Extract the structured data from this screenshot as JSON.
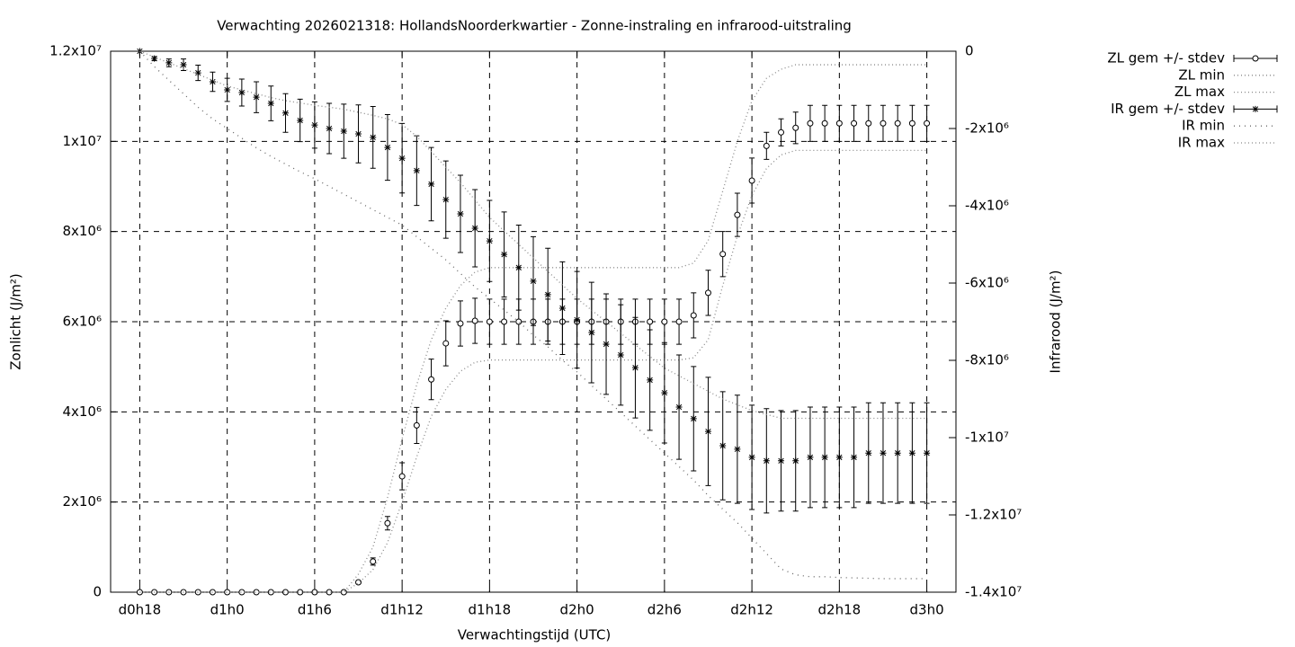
{
  "chart_data": {
    "type": "errorbar",
    "title": "Verwachting 2026021318: HollandsNoorderkwartier - Zonne-instraling en infrarood-uitstraling",
    "x_label": "Verwachtingstijd (UTC)",
    "y_label": "Zonlicht (J/m²)",
    "y2_label": "Infrarood (J/m²)",
    "grid": true,
    "legend": "outside-top-right",
    "xlim": [
      16,
      74
    ],
    "xticks": [
      {
        "value": 18,
        "label": "d0h18"
      },
      {
        "value": 24,
        "label": "d1h0"
      },
      {
        "value": 30,
        "label": "d1h6"
      },
      {
        "value": 36,
        "label": "d1h12"
      },
      {
        "value": 42,
        "label": "d1h18"
      },
      {
        "value": 48,
        "label": "d2h0"
      },
      {
        "value": 54,
        "label": "d2h6"
      },
      {
        "value": 60,
        "label": "d2h12"
      },
      {
        "value": 66,
        "label": "d2h18"
      },
      {
        "value": 72,
        "label": "d3h0"
      }
    ],
    "ylim": [
      0,
      12000000.0
    ],
    "yticks": [
      0,
      {
        "value": 2000000.0,
        "label": "2x10⁶"
      },
      {
        "value": 4000000.0,
        "label": "4x10⁶"
      },
      {
        "value": 6000000.0,
        "label": "6x10⁶"
      },
      {
        "value": 8000000.0,
        "label": "8x10⁶"
      },
      {
        "value": 10000000.0,
        "label": "1x10⁷"
      },
      {
        "value": 12000000.0,
        "label": "1.2x10⁷"
      }
    ],
    "y2lim": [
      -14000000.0,
      0
    ],
    "y2ticks": [
      {
        "value": -14000000.0,
        "label": "-1.4x10⁷"
      },
      {
        "value": -12000000.0,
        "label": "-1.2x10⁷"
      },
      {
        "value": -10000000.0,
        "label": "-1x10⁷"
      },
      {
        "value": -8000000.0,
        "label": "-8x10⁶"
      },
      {
        "value": -6000000.0,
        "label": "-6x10⁶"
      },
      {
        "value": -4000000.0,
        "label": "-4x10⁶"
      },
      {
        "value": -2000000.0,
        "label": "-2x10⁶"
      },
      0
    ],
    "x": [
      18,
      19,
      20,
      21,
      22,
      23,
      24,
      25,
      26,
      27,
      28,
      29,
      30,
      31,
      32,
      33,
      34,
      35,
      36,
      37,
      38,
      39,
      40,
      41,
      42,
      43,
      44,
      45,
      46,
      47,
      48,
      49,
      50,
      51,
      52,
      53,
      54,
      55,
      56,
      57,
      58,
      59,
      60,
      61,
      62,
      63,
      64,
      65,
      66,
      67,
      68,
      69,
      70,
      71,
      72
    ],
    "series": [
      {
        "name": "ZL gem +/- stdev",
        "color": "#000000",
        "style": "errorbars",
        "marker": "circle",
        "axis": "y",
        "values": [
          0,
          0,
          0,
          0,
          0,
          0,
          0,
          0,
          0,
          0,
          0,
          0,
          0,
          0,
          0,
          220000.0,
          680000.0,
          1530000.0,
          2570000.0,
          3700000.0,
          4720000.0,
          5520000.0,
          5960000.0,
          6020000.0,
          6000000.0,
          6000000.0,
          6000000.0,
          6000000.0,
          6000000.0,
          6000000.0,
          6000000.0,
          6000000.0,
          6000000.0,
          6000000.0,
          6000000.0,
          6000000.0,
          6000000.0,
          6000000.0,
          6140000.0,
          6640000.0,
          7500000.0,
          8370000.0,
          9130000.0,
          9900000.0,
          10200000.0,
          10300000.0,
          10400000.0,
          10400000.0,
          10400000.0,
          10400000.0,
          10400000.0,
          10400000.0,
          10400000.0,
          10400000.0,
          10400000.0
        ],
        "errors": [
          0,
          0,
          0,
          0,
          0,
          0,
          0,
          0,
          0,
          0,
          0,
          0,
          0,
          0,
          0,
          20000.0,
          80000.0,
          150000.0,
          300000.0,
          400000.0,
          450000.0,
          500000.0,
          500000.0,
          500000.0,
          500000.0,
          500000.0,
          500000.0,
          500000.0,
          500000.0,
          500000.0,
          500000.0,
          500000.0,
          500000.0,
          500000.0,
          500000.0,
          500000.0,
          500000.0,
          500000.0,
          500000.0,
          500000.0,
          500000.0,
          480000.0,
          500000.0,
          300000.0,
          300000.0,
          350000.0,
          400000.0,
          400000.0,
          400000.0,
          400000.0,
          400000.0,
          400000.0,
          400000.0,
          400000.0,
          400000.0
        ]
      },
      {
        "name": "ZL min",
        "color": "#888888",
        "style": "dotted",
        "axis": "y",
        "values": [
          0,
          0,
          0,
          0,
          0,
          0,
          0,
          0,
          0,
          0,
          0,
          0,
          0,
          0,
          0,
          200000.0,
          500000.0,
          1100000.0,
          2000000.0,
          3000000.0,
          3900000.0,
          4500000.0,
          4900000.0,
          5100000.0,
          5150000.0,
          5150000.0,
          5150000.0,
          5150000.0,
          5150000.0,
          5150000.0,
          5150000.0,
          5150000.0,
          5150000.0,
          5150000.0,
          5150000.0,
          5150000.0,
          5150000.0,
          5150000.0,
          5200000.0,
          5600000.0,
          6800000.0,
          7900000.0,
          8800000.0,
          9400000.0,
          9700000.0,
          9800000.0,
          9800000.0,
          9800000.0,
          9800000.0,
          9800000.0,
          9800000.0,
          9800000.0,
          9800000.0,
          9800000.0,
          9800000.0
        ]
      },
      {
        "name": "ZL max",
        "color": "#888888",
        "style": "dotted",
        "axis": "y",
        "values": [
          0,
          0,
          0,
          0,
          0,
          0,
          0,
          0,
          0,
          0,
          0,
          0,
          0,
          0,
          0,
          400000.0,
          1000000.0,
          2100000.0,
          3400000.0,
          4600000.0,
          5600000.0,
          6300000.0,
          6800000.0,
          7100000.0,
          7200000.0,
          7200000.0,
          7200000.0,
          7200000.0,
          7200000.0,
          7200000.0,
          7200000.0,
          7200000.0,
          7200000.0,
          7200000.0,
          7200000.0,
          7200000.0,
          7200000.0,
          7200000.0,
          7300000.0,
          7800000.0,
          8900000.0,
          10000000.0,
          10900000.0,
          11400000.0,
          11600000.0,
          11700000.0,
          11700000.0,
          11700000.0,
          11700000.0,
          11700000.0,
          11700000.0,
          11700000.0,
          11700000.0,
          11700000.0,
          11700000.0
        ]
      },
      {
        "name": "IR gem +/- stdev",
        "color": "#000000",
        "style": "errorbars",
        "marker": "star",
        "axis": "y2",
        "values": [
          0,
          -190000.0,
          -300000.0,
          -350000.0,
          -560000.0,
          -790000.0,
          -1000000.0,
          -1070000.0,
          -1190000.0,
          -1350000.0,
          -1600000.0,
          -1790000.0,
          -1910000.0,
          -2000000.0,
          -2070000.0,
          -2140000.0,
          -2230000.0,
          -2490000.0,
          -2770000.0,
          -3090000.0,
          -3440000.0,
          -3840000.0,
          -4210000.0,
          -4580000.0,
          -4910000.0,
          -5260000.0,
          -5600000.0,
          -5950000.0,
          -6300000.0,
          -6650000.0,
          -6950000.0,
          -7280000.0,
          -7580000.0,
          -7860000.0,
          -8190000.0,
          -8510000.0,
          -8840000.0,
          -9210000.0,
          -9510000.0,
          -9840000.0,
          -10210000.0,
          -10300000.0,
          -10510000.0,
          -10600000.0,
          -10600000.0,
          -10600000.0,
          -10510000.0,
          -10510000.0,
          -10510000.0,
          -10510000.0,
          -10400000.0,
          -10400000.0,
          -10400000.0,
          -10400000.0,
          -10400000.0
        ],
        "errors": [
          0,
          50000.0,
          100000.0,
          150000.0,
          200000.0,
          250000.0,
          300000.0,
          350000.0,
          400000.0,
          450000.0,
          500000.0,
          550000.0,
          600000.0,
          650000.0,
          700000.0,
          750000.0,
          800000.0,
          850000.0,
          900000.0,
          900000.0,
          950000.0,
          1000000.0,
          1000000.0,
          1000000.0,
          1050000.0,
          1100000.0,
          1100000.0,
          1150000.0,
          1200000.0,
          1200000.0,
          1250000.0,
          1300000.0,
          1300000.0,
          1300000.0,
          1300000.0,
          1300000.0,
          1300000.0,
          1350000.0,
          1350000.0,
          1400000.0,
          1400000.0,
          1400000.0,
          1350000.0,
          1350000.0,
          1300000.0,
          1300000.0,
          1300000.0,
          1300000.0,
          1300000.0,
          1300000.0,
          1300000.0,
          1300000.0,
          1300000.0,
          1300000.0,
          1300000.0
        ]
      },
      {
        "name": "IR min",
        "color": "#666666",
        "style": "dotted-wide",
        "axis": "y2",
        "values": [
          0,
          -400000.0,
          -750000.0,
          -1100000.0,
          -1450000.0,
          -1750000.0,
          -2000000.0,
          -2250000.0,
          -2500000.0,
          -2720000.0,
          -2920000.0,
          -3120000.0,
          -3300000.0,
          -3500000.0,
          -3700000.0,
          -3900000.0,
          -4100000.0,
          -4300000.0,
          -4500000.0,
          -4800000.0,
          -5100000.0,
          -5400000.0,
          -5750000.0,
          -6100000.0,
          -6400000.0,
          -6700000.0,
          -7000000.0,
          -7350000.0,
          -7650000.0,
          -8000000.0,
          -8300000.0,
          -8650000.0,
          -9000000.0,
          -9350000.0,
          -9700000.0,
          -10050000.0,
          -10400000.0,
          -10750000.0,
          -11100000.0,
          -11500000.0,
          -11850000.0,
          -12200000.0,
          -12600000.0,
          -13000000.0,
          -13400000.0,
          -13550000.0,
          -13600000.0,
          -13600000.0,
          -13620000.0,
          -13630000.0,
          -13640000.0,
          -13650000.0,
          -13650000.0,
          -13650000.0,
          -13650000.0
        ]
      },
      {
        "name": "IR max",
        "color": "#888888",
        "style": "dotted",
        "axis": "y2",
        "values": [
          0,
          -150000.0,
          -300000.0,
          -450000.0,
          -600000.0,
          -750000.0,
          -900000.0,
          -1000000.0,
          -1100000.0,
          -1200000.0,
          -1280000.0,
          -1340000.0,
          -1400000.0,
          -1450000.0,
          -1500000.0,
          -1580000.0,
          -1660000.0,
          -1750000.0,
          -1900000.0,
          -2200000.0,
          -2600000.0,
          -3000000.0,
          -3400000.0,
          -3850000.0,
          -4300000.0,
          -4650000.0,
          -5000000.0,
          -5350000.0,
          -5700000.0,
          -6050000.0,
          -6400000.0,
          -6700000.0,
          -7000000.0,
          -7300000.0,
          -7600000.0,
          -7900000.0,
          -8200000.0,
          -8400000.0,
          -8600000.0,
          -8800000.0,
          -9000000.0,
          -9150000.0,
          -9300000.0,
          -9400000.0,
          -9500000.0,
          -9500000.0,
          -9500000.0,
          -9500000.0,
          -9500000.0,
          -9500000.0,
          -9500000.0,
          -9500000.0,
          -9500000.0,
          -9500000.0,
          -9500000.0
        ]
      }
    ]
  }
}
